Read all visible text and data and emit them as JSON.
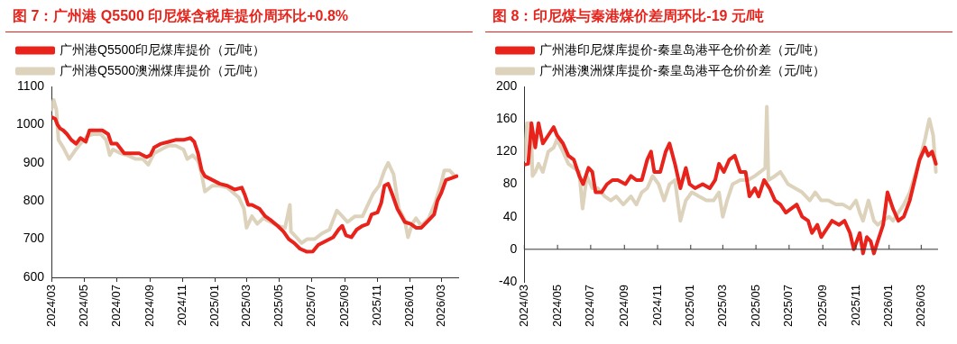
{
  "chart_data": [
    {
      "type": "line",
      "title": "图 7：广州港 Q5500 印尼煤含税库提价周环比+0.8%",
      "legend": "top left",
      "grid": false,
      "marker": "none",
      "line_style": "solid",
      "xlim": [
        "2024-03-01",
        "2026-04-01"
      ],
      "ylim": [
        600,
        1100
      ],
      "yticks": [
        600,
        700,
        800,
        900,
        1000,
        1100
      ],
      "xticks": [
        {
          "value": "2024-03-01",
          "label": "2024/03"
        },
        {
          "value": "2024-05-01",
          "label": "2024/05"
        },
        {
          "value": "2024-07-01",
          "label": "2024/07"
        },
        {
          "value": "2024-09-01",
          "label": "2024/09"
        },
        {
          "value": "2024-11-01",
          "label": "2024/11"
        },
        {
          "value": "2025-01-01",
          "label": "2025/01"
        },
        {
          "value": "2025-03-01",
          "label": "2025/03"
        },
        {
          "value": "2025-05-01",
          "label": "2025/05"
        },
        {
          "value": "2025-07-01",
          "label": "2025/07"
        },
        {
          "value": "2025-09-01",
          "label": "2025/09"
        },
        {
          "value": "2025-11-01",
          "label": "2025/11"
        },
        {
          "value": "2026-01-01",
          "label": "2026/01"
        },
        {
          "value": "2026-03-01",
          "label": "2026/03"
        }
      ],
      "series": [
        {
          "name": "广州港Q5500印尼煤库提价（元/吨）",
          "color": "#e8231b",
          "x": [
            "2024-03-01",
            "2024-03-08",
            "2024-03-12",
            "2024-03-17",
            "2024-03-23",
            "2024-03-30",
            "2024-04-07",
            "2024-04-16",
            "2024-04-24",
            "2024-05-04",
            "2024-05-11",
            "2024-05-21",
            "2024-06-04",
            "2024-06-15",
            "2024-06-21",
            "2024-07-01",
            "2024-07-15",
            "2024-07-29",
            "2024-08-12",
            "2024-08-26",
            "2024-09-02",
            "2024-09-09",
            "2024-09-22",
            "2024-10-06",
            "2024-10-19",
            "2024-11-03",
            "2024-11-16",
            "2024-11-23",
            "2024-11-30",
            "2024-12-07",
            "2024-12-13",
            "2024-12-27",
            "2025-01-10",
            "2025-01-24",
            "2025-02-07",
            "2025-02-20",
            "2025-02-26",
            "2025-03-04",
            "2025-03-11",
            "2025-03-25",
            "2025-04-05",
            "2025-04-15",
            "2025-04-28",
            "2025-05-09",
            "2025-05-19",
            "2025-05-29",
            "2025-06-09",
            "2025-06-22",
            "2025-07-03",
            "2025-07-13",
            "2025-07-27",
            "2025-08-10",
            "2025-08-20",
            "2025-08-27",
            "2025-09-03",
            "2025-09-13",
            "2025-09-23",
            "2025-10-04",
            "2025-10-14",
            "2025-10-21",
            "2025-11-01",
            "2025-11-08",
            "2025-11-14",
            "2025-11-21",
            "2025-11-28",
            "2025-12-08",
            "2025-12-22",
            "2026-01-02",
            "2026-01-12",
            "2026-01-22",
            "2026-02-05",
            "2026-02-15",
            "2026-02-21",
            "2026-02-28",
            "2026-03-09",
            "2026-03-19",
            "2026-03-29"
          ],
          "values": [
            1020,
            1015,
            1000,
            990,
            985,
            975,
            960,
            950,
            965,
            955,
            985,
            985,
            985,
            975,
            950,
            950,
            925,
            925,
            925,
            915,
            920,
            940,
            950,
            955,
            960,
            960,
            965,
            955,
            925,
            880,
            865,
            855,
            845,
            840,
            830,
            835,
            815,
            790,
            790,
            780,
            760,
            750,
            735,
            720,
            700,
            690,
            675,
            667,
            668,
            685,
            695,
            705,
            725,
            735,
            710,
            705,
            725,
            735,
            740,
            765,
            770,
            795,
            840,
            845,
            820,
            780,
            745,
            740,
            730,
            730,
            750,
            765,
            800,
            820,
            855,
            860,
            865
          ]
        },
        {
          "name": "广州港Q5500澳洲煤库提价（元/吨）",
          "color": "#ddd3bd",
          "x": [
            "2024-03-01",
            "2024-03-05",
            "2024-03-10",
            "2024-03-14",
            "2024-03-23",
            "2024-04-03",
            "2024-04-13",
            "2024-04-24",
            "2024-05-07",
            "2024-05-17",
            "2024-06-01",
            "2024-06-11",
            "2024-06-18",
            "2024-06-24",
            "2024-07-08",
            "2024-07-21",
            "2024-08-05",
            "2024-08-19",
            "2024-08-29",
            "2024-09-09",
            "2024-09-22",
            "2024-10-06",
            "2024-10-19",
            "2024-11-03",
            "2024-11-10",
            "2024-11-20",
            "2024-11-30",
            "2024-12-07",
            "2024-12-13",
            "2024-12-27",
            "2025-01-10",
            "2025-01-24",
            "2025-02-14",
            "2025-02-24",
            "2025-03-01",
            "2025-03-11",
            "2025-03-21",
            "2025-04-01",
            "2025-04-15",
            "2025-04-28",
            "2025-05-12",
            "2025-05-21",
            "2025-05-23",
            "2025-06-02",
            "2025-06-12",
            "2025-06-22",
            "2025-07-06",
            "2025-07-20",
            "2025-08-03",
            "2025-08-17",
            "2025-08-27",
            "2025-09-06",
            "2025-09-20",
            "2025-10-04",
            "2025-10-14",
            "2025-10-24",
            "2025-11-04",
            "2025-11-14",
            "2025-11-21",
            "2025-12-01",
            "2025-12-11",
            "2025-12-22",
            "2025-12-28",
            "2026-01-05",
            "2026-01-12",
            "2026-01-22",
            "2026-02-05",
            "2026-02-18",
            "2026-02-28",
            "2026-03-06",
            "2026-03-16",
            "2026-03-26"
          ],
          "values": [
            1040,
            1065,
            1040,
            960,
            940,
            910,
            930,
            950,
            970,
            975,
            975,
            960,
            920,
            935,
            925,
            920,
            910,
            910,
            895,
            925,
            935,
            945,
            945,
            935,
            910,
            920,
            905,
            870,
            825,
            840,
            840,
            835,
            810,
            780,
            730,
            760,
            740,
            755,
            745,
            735,
            730,
            790,
            720,
            705,
            690,
            700,
            700,
            715,
            725,
            775,
            760,
            745,
            760,
            760,
            790,
            820,
            840,
            880,
            900,
            870,
            780,
            750,
            705,
            740,
            755,
            735,
            755,
            800,
            845,
            880,
            880,
            865
          ]
        }
      ]
    },
    {
      "type": "line",
      "title": "图 8：印尼煤与秦港煤价差周环比-19 元/吨",
      "legend": "top left",
      "grid": false,
      "marker": "none",
      "line_style": "solid",
      "ref_lines": [
        {
          "axis": "y",
          "value": 0,
          "color": "#333333"
        }
      ],
      "xlim": [
        "2024-03-01",
        "2026-04-01"
      ],
      "ylim": [
        -40,
        200
      ],
      "yticks": [
        -40,
        0,
        40,
        80,
        120,
        160,
        200
      ],
      "xticks": [
        {
          "value": "2024-03-01",
          "label": "2024/03"
        },
        {
          "value": "2024-05-01",
          "label": "2024/05"
        },
        {
          "value": "2024-07-01",
          "label": "2024/07"
        },
        {
          "value": "2024-09-01",
          "label": "2024/09"
        },
        {
          "value": "2024-11-01",
          "label": "2024/11"
        },
        {
          "value": "2025-01-01",
          "label": "2025/01"
        },
        {
          "value": "2025-03-01",
          "label": "2025/03"
        },
        {
          "value": "2025-05-01",
          "label": "2025/05"
        },
        {
          "value": "2025-07-01",
          "label": "2025/07"
        },
        {
          "value": "2025-09-01",
          "label": "2025/09"
        },
        {
          "value": "2025-11-01",
          "label": "2025/11"
        },
        {
          "value": "2026-01-01",
          "label": "2026/01"
        },
        {
          "value": "2026-03-01",
          "label": "2026/03"
        }
      ],
      "series": [
        {
          "name": "广州港印尼煤库提价-秦皇岛港平仓价价差（元/吨）",
          "color": "#e8231b",
          "x": [
            "2024-03-01",
            "2024-03-08",
            "2024-03-14",
            "2024-03-21",
            "2024-03-27",
            "2024-04-04",
            "2024-04-14",
            "2024-04-24",
            "2024-04-30",
            "2024-05-11",
            "2024-05-21",
            "2024-05-31",
            "2024-06-10",
            "2024-06-17",
            "2024-06-27",
            "2024-07-04",
            "2024-07-10",
            "2024-07-21",
            "2024-07-31",
            "2024-08-10",
            "2024-08-20",
            "2024-09-03",
            "2024-09-13",
            "2024-09-23",
            "2024-10-03",
            "2024-10-13",
            "2024-10-20",
            "2024-10-26",
            "2024-11-06",
            "2024-11-16",
            "2024-11-23",
            "2024-12-03",
            "2024-12-13",
            "2024-12-23",
            "2024-12-30",
            "2025-01-09",
            "2025-01-23",
            "2025-02-05",
            "2025-02-15",
            "2025-02-22",
            "2025-03-03",
            "2025-03-13",
            "2025-03-23",
            "2025-04-02",
            "2025-04-12",
            "2025-04-19",
            "2025-04-29",
            "2025-05-06",
            "2025-05-16",
            "2025-05-26",
            "2025-06-05",
            "2025-06-15",
            "2025-06-25",
            "2025-07-05",
            "2025-07-15",
            "2025-07-25",
            "2025-08-05",
            "2025-08-12",
            "2025-08-22",
            "2025-08-29",
            "2025-09-08",
            "2025-09-18",
            "2025-10-01",
            "2025-10-11",
            "2025-10-21",
            "2025-10-28",
            "2025-11-08",
            "2025-11-14",
            "2025-11-21",
            "2025-11-28",
            "2025-12-04",
            "2025-12-11",
            "2025-12-21",
            "2025-12-29",
            "2026-01-08",
            "2026-01-18",
            "2026-01-28",
            "2026-02-08",
            "2026-02-17",
            "2026-02-26",
            "2026-03-08",
            "2026-03-14",
            "2026-03-21",
            "2026-03-28"
          ],
          "values": [
            104,
            105,
            155,
            125,
            155,
            130,
            140,
            150,
            140,
            130,
            115,
            110,
            90,
            80,
            100,
            95,
            70,
            70,
            80,
            85,
            85,
            80,
            90,
            85,
            85,
            110,
            120,
            95,
            95,
            120,
            130,
            105,
            75,
            100,
            80,
            75,
            80,
            75,
            85,
            105,
            95,
            110,
            115,
            95,
            95,
            65,
            75,
            65,
            85,
            75,
            60,
            55,
            45,
            50,
            55,
            40,
            35,
            20,
            30,
            15,
            25,
            35,
            30,
            35,
            20,
            0,
            20,
            -5,
            15,
            10,
            -5,
            10,
            30,
            70,
            50,
            35,
            40,
            60,
            85,
            110,
            125,
            115,
            120,
            105
          ]
        },
        {
          "name": "广州港澳洲煤库提价-秦皇岛港平仓价价差（元/吨）",
          "color": "#ddd3bd",
          "x": [
            "2024-03-01",
            "2024-03-06",
            "2024-03-13",
            "2024-03-16",
            "2024-03-21",
            "2024-03-27",
            "2024-04-04",
            "2024-04-14",
            "2024-04-24",
            "2024-04-30",
            "2024-05-11",
            "2024-05-21",
            "2024-05-31",
            "2024-06-10",
            "2024-06-16",
            "2024-06-24",
            "2024-07-04",
            "2024-07-14",
            "2024-07-27",
            "2024-08-07",
            "2024-08-17",
            "2024-08-30",
            "2024-09-13",
            "2024-09-23",
            "2024-10-03",
            "2024-10-13",
            "2024-10-23",
            "2024-11-03",
            "2024-11-13",
            "2024-11-23",
            "2024-12-03",
            "2024-12-13",
            "2024-12-23",
            "2025-01-03",
            "2025-01-16",
            "2025-01-30",
            "2025-02-12",
            "2025-02-22",
            "2025-03-01",
            "2025-03-09",
            "2025-03-19",
            "2025-04-02",
            "2025-04-16",
            "2025-04-29",
            "2025-05-09",
            "2025-05-18",
            "2025-05-21",
            "2025-05-24",
            "2025-06-05",
            "2025-06-15",
            "2025-06-29",
            "2025-07-12",
            "2025-07-25",
            "2025-08-08",
            "2025-08-18",
            "2025-08-29",
            "2025-09-11",
            "2025-09-25",
            "2025-10-08",
            "2025-10-21",
            "2025-11-01",
            "2025-11-08",
            "2025-11-14",
            "2025-11-24",
            "2025-12-04",
            "2025-12-11",
            "2025-12-21",
            "2026-01-01",
            "2026-01-08",
            "2026-01-18",
            "2026-01-28",
            "2026-02-08",
            "2026-02-17",
            "2026-02-26",
            "2026-03-08",
            "2026-03-16",
            "2026-03-23",
            "2026-03-28"
          ],
          "values": [
            110,
            155,
            155,
            90,
            95,
            105,
            95,
            120,
            125,
            135,
            120,
            105,
            100,
            95,
            50,
            90,
            75,
            75,
            65,
            60,
            65,
            55,
            65,
            55,
            70,
            75,
            90,
            80,
            60,
            80,
            85,
            35,
            60,
            70,
            65,
            60,
            60,
            70,
            40,
            60,
            80,
            85,
            85,
            90,
            95,
            100,
            175,
            85,
            90,
            95,
            80,
            75,
            70,
            60,
            70,
            60,
            60,
            55,
            55,
            50,
            60,
            45,
            35,
            60,
            35,
            30,
            35,
            40,
            35,
            45,
            55,
            70,
            90,
            110,
            135,
            160,
            140,
            95
          ]
        }
      ]
    }
  ]
}
